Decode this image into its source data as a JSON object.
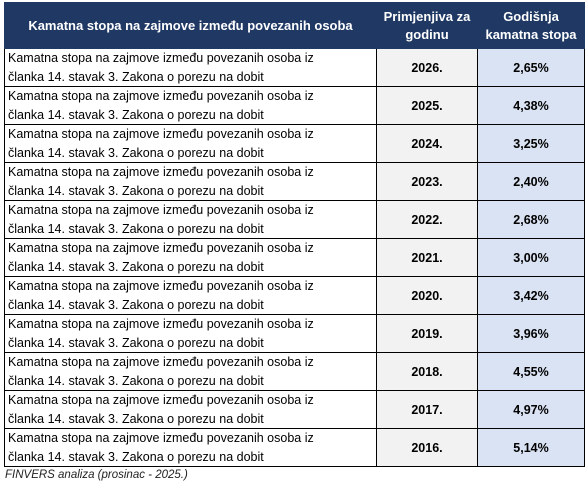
{
  "table": {
    "headers": {
      "description": "Kamatna stopa na zajmove između povezanih osoba",
      "year_line1": "Primjenjiva za",
      "year_line2": "godinu",
      "rate_line1": "Godišnja",
      "rate_line2": "kamatna stopa"
    },
    "rows": [
      {
        "desc_line1": "Kamatna stopa na zajmove između povezanih osoba iz",
        "desc_line2": "članka 14. stavak 3. Zakona o porezu na dobit",
        "year": "2026.",
        "rate": "2,65%"
      },
      {
        "desc_line1": "Kamatna stopa na zajmove između povezanih osoba iz",
        "desc_line2": "članka 14. stavak 3. Zakona o porezu na dobit",
        "year": "2025.",
        "rate": "4,38%"
      },
      {
        "desc_line1": "Kamatna stopa na zajmove između povezanih osoba iz",
        "desc_line2": "članka 14. stavak 3. Zakona o porezu na dobit",
        "year": "2024.",
        "rate": "3,25%"
      },
      {
        "desc_line1": "Kamatna stopa na zajmove između povezanih osoba iz",
        "desc_line2": "članka 14. stavak 3. Zakona o porezu na dobit",
        "year": "2023.",
        "rate": "2,40%"
      },
      {
        "desc_line1": "Kamatna stopa na zajmove između povezanih osoba iz",
        "desc_line2": "članka 14. stavak 3. Zakona o porezu na dobit",
        "year": "2022.",
        "rate": "2,68%"
      },
      {
        "desc_line1": "Kamatna stopa na zajmove između povezanih osoba iz",
        "desc_line2": "članka 14. stavak 3. Zakona o porezu na dobit",
        "year": "2021.",
        "rate": "3,00%"
      },
      {
        "desc_line1": "Kamatna stopa na zajmove između povezanih osoba iz",
        "desc_line2": "članka 14. stavak 3. Zakona o porezu na dobit",
        "year": "2020.",
        "rate": "3,42%"
      },
      {
        "desc_line1": "Kamatna stopa na zajmove između povezanih osoba iz",
        "desc_line2": "članka 14. stavak 3. Zakona o porezu na dobit",
        "year": "2019.",
        "rate": "3,96%"
      },
      {
        "desc_line1": "Kamatna stopa na zajmove između povezanih osoba iz",
        "desc_line2": "članka 14. stavak 3. Zakona o porezu na dobit",
        "year": "2018.",
        "rate": "4,55%"
      },
      {
        "desc_line1": "Kamatna stopa na zajmove između povezanih osoba iz",
        "desc_line2": "članka 14. stavak 3. Zakona o porezu na dobit",
        "year": "2017.",
        "rate": "4,97%"
      },
      {
        "desc_line1": "Kamatna stopa na zajmove između povezanih osoba iz",
        "desc_line2": "članka 14. stavak 3. Zakona o porezu na dobit",
        "year": "2016.",
        "rate": "5,14%"
      }
    ]
  },
  "source_note": "FINVERS analiza (prosinac - 2025.)",
  "colors": {
    "header_bg": "#1f3864",
    "year_bg": "#f2f2f2",
    "rate_bg": "#dae3f3"
  }
}
